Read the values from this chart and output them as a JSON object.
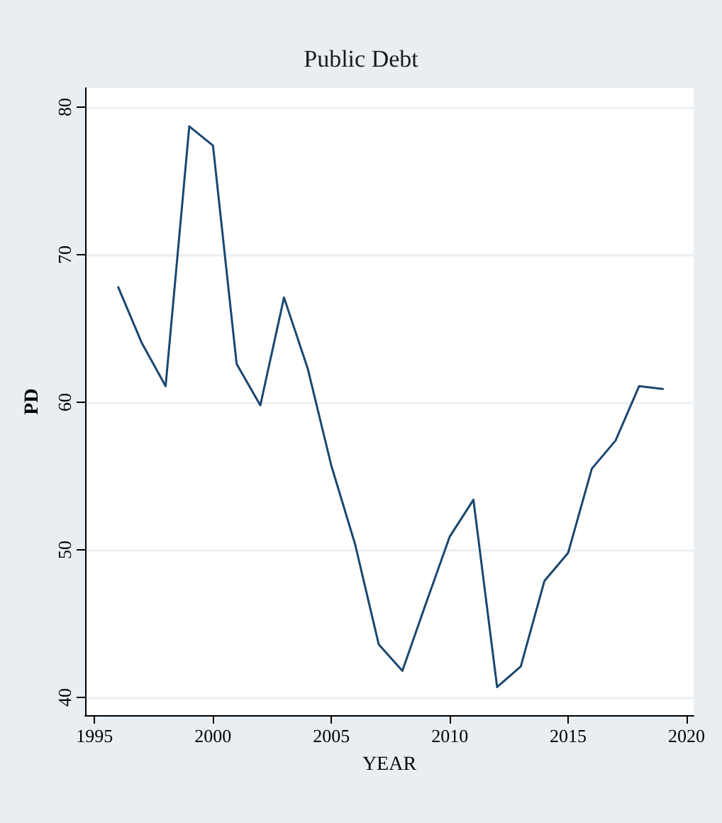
{
  "chart_data": {
    "type": "line",
    "title": "Public Debt",
    "xlabel": "YEAR",
    "ylabel": "PD",
    "x": [
      1996,
      1997,
      1998,
      1999,
      2000,
      2001,
      2002,
      2003,
      2004,
      2005,
      2006,
      2007,
      2008,
      2009,
      2010,
      2011,
      2012,
      2013,
      2014,
      2015,
      2016,
      2017,
      2018,
      2019
    ],
    "series": [
      {
        "color": "#1a476f",
        "values": [
          67.8,
          64.0,
          61.1,
          78.7,
          77.4,
          62.6,
          59.8,
          67.1,
          62.3,
          55.7,
          50.4,
          43.6,
          41.8,
          46.4,
          50.9,
          53.4,
          40.7,
          42.1,
          47.9,
          49.8,
          55.5,
          57.4,
          61.1,
          60.9
        ]
      }
    ],
    "xlim": [
      1994.6,
      2020.3
    ],
    "xticks": [
      1995,
      2000,
      2005,
      2010,
      2015,
      2020
    ],
    "ylim": [
      38.8,
      81.3
    ],
    "yticks": [
      40,
      50,
      60,
      70,
      80
    ],
    "grid": "y",
    "marker": "none",
    "line_style": "solid"
  }
}
